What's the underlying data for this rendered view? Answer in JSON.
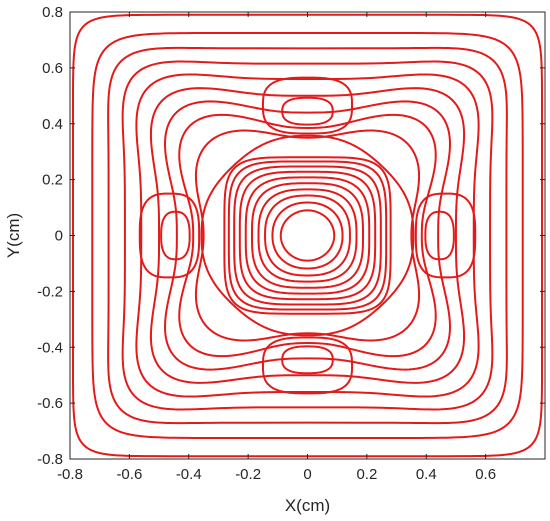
{
  "chart_data": {
    "type": "contour",
    "title": "",
    "xlabel": "X(cm)",
    "ylabel": "Y(cm)",
    "xlim": [
      -0.8,
      0.8
    ],
    "ylim": [
      -0.8,
      0.8
    ],
    "x_ticks": [
      -0.8,
      -0.6,
      -0.4,
      -0.2,
      0,
      0.2,
      0.4,
      0.6
    ],
    "x_tick_labels": [
      "-0.8",
      "-0.6",
      "-0.4",
      "-0.2",
      "0",
      "0.2",
      "0.4",
      "0.6"
    ],
    "y_ticks": [
      0.8,
      0.6,
      0.4,
      0.2,
      0,
      -0.2,
      -0.4,
      -0.6,
      -0.8
    ],
    "y_tick_labels": [
      "0.8",
      "0.6",
      "0.4",
      "0.2",
      "0",
      "-0.2",
      "-0.4",
      "-0.6",
      "-0.8"
    ],
    "grid": false,
    "legend": "none",
    "line_color": "#e41a1a",
    "axis_color": "#262626",
    "contour_levels": [
      {
        "type": "central",
        "halfwidth": 0.09,
        "n": 2.0
      },
      {
        "type": "central",
        "halfwidth": 0.118,
        "n": 2.2
      },
      {
        "type": "central",
        "halfwidth": 0.143,
        "n": 2.5
      },
      {
        "type": "central",
        "halfwidth": 0.165,
        "n": 2.8
      },
      {
        "type": "central",
        "halfwidth": 0.187,
        "n": 3.1
      },
      {
        "type": "central",
        "halfwidth": 0.208,
        "n": 3.4
      },
      {
        "type": "central",
        "halfwidth": 0.228,
        "n": 3.8
      },
      {
        "type": "central",
        "halfwidth": 0.247,
        "n": 4.2
      },
      {
        "type": "central",
        "halfwidth": 0.265,
        "n": 4.6
      },
      {
        "type": "central",
        "halfwidth": 0.28,
        "n": 5.0
      },
      {
        "type": "lobe",
        "cx": 0.0,
        "cy": 0.445,
        "rx": 0.085,
        "ry": 0.048,
        "n": 2.6
      },
      {
        "type": "lobe",
        "cx": 0.0,
        "cy": 0.465,
        "rx": 0.15,
        "ry": 0.1,
        "n": 3.0
      },
      {
        "type": "lobe",
        "cx": 0.0,
        "cy": -0.445,
        "rx": 0.085,
        "ry": 0.048,
        "n": 2.6
      },
      {
        "type": "lobe",
        "cx": 0.0,
        "cy": -0.465,
        "rx": 0.15,
        "ry": 0.1,
        "n": 3.0
      },
      {
        "type": "lobe",
        "cx": 0.445,
        "cy": 0.0,
        "rx": 0.048,
        "ry": 0.085,
        "n": 2.6
      },
      {
        "type": "lobe",
        "cx": 0.465,
        "cy": 0.0,
        "rx": 0.1,
        "ry": 0.15,
        "n": 3.0
      },
      {
        "type": "lobe",
        "cx": -0.445,
        "cy": 0.0,
        "rx": 0.048,
        "ry": 0.085,
        "n": 2.6
      },
      {
        "type": "lobe",
        "cx": -0.465,
        "cy": 0.0,
        "rx": 0.1,
        "ry": 0.15,
        "n": 3.0
      },
      {
        "type": "ring",
        "r": 0.345,
        "amp": 0.012,
        "n": 2.4
      },
      {
        "type": "ring",
        "r": 0.4,
        "amp": -0.05,
        "n": 2.3
      },
      {
        "type": "ring",
        "r": 0.45,
        "amp": -0.065,
        "n": 2.6
      },
      {
        "type": "ring",
        "r": 0.5,
        "amp": -0.06,
        "n": 2.9
      },
      {
        "type": "ring",
        "r": 0.55,
        "amp": -0.05,
        "n": 3.3
      },
      {
        "type": "ring",
        "r": 0.6,
        "amp": -0.04,
        "n": 3.8
      },
      {
        "type": "ring",
        "r": 0.645,
        "amp": -0.03,
        "n": 4.5
      },
      {
        "type": "ring",
        "r": 0.69,
        "amp": -0.02,
        "n": 5.5
      },
      {
        "type": "ring",
        "r": 0.735,
        "amp": -0.01,
        "n": 7.0
      },
      {
        "type": "ring",
        "r": 0.79,
        "amp": 0.0,
        "n": 14.0
      }
    ]
  }
}
